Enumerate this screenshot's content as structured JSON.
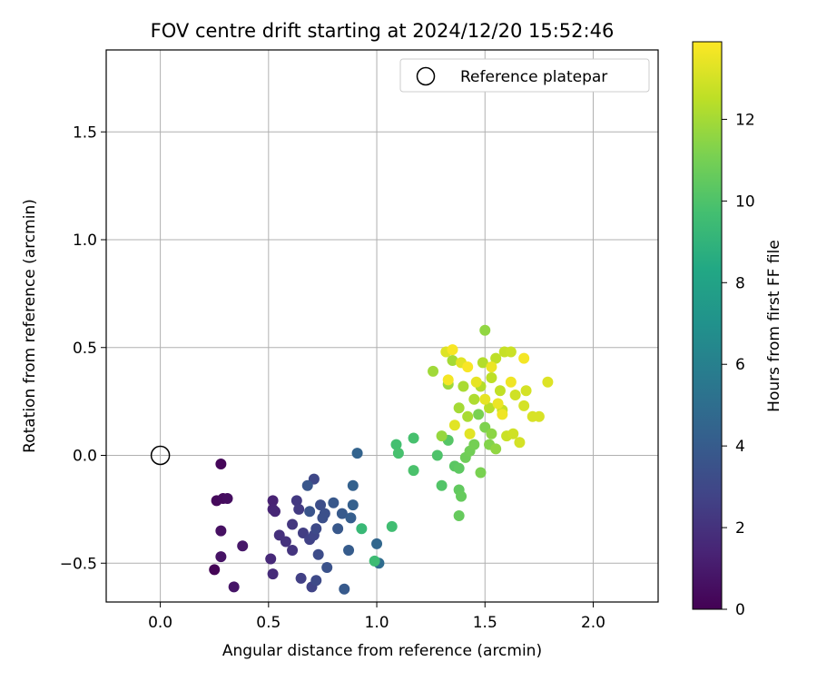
{
  "chart_data": {
    "type": "scatter",
    "title": "FOV centre drift starting at 2024/12/20 15:52:46",
    "xlabel": "Angular distance from reference (arcmin)",
    "ylabel": "Rotation from reference (arcmin)",
    "xlim": [
      -0.25,
      2.3
    ],
    "ylim": [
      -0.68,
      1.88
    ],
    "xticks": [
      "0.0",
      "0.5",
      "1.0",
      "1.5",
      "2.0"
    ],
    "xtick_values": [
      0,
      0.5,
      1.0,
      1.5,
      2.0
    ],
    "yticks": [
      "−0.5",
      "0.0",
      "0.5",
      "1.0",
      "1.5"
    ],
    "ytick_values": [
      -0.5,
      0,
      0.5,
      1.0,
      1.5
    ],
    "grid": true,
    "legend": {
      "placement": "top-right",
      "label": "Reference platepar"
    },
    "reference_point": {
      "x": 0.0,
      "y": 0.0
    },
    "colorbar": {
      "label": "Hours from first FF file",
      "range": [
        0,
        13.9
      ],
      "ticks": [
        "0",
        "2",
        "4",
        "6",
        "8",
        "10",
        "12"
      ],
      "tick_values": [
        0,
        2,
        4,
        6,
        8,
        10,
        12
      ],
      "colormap": "viridis"
    },
    "points": [
      [
        0.25,
        -0.53,
        0.1
      ],
      [
        0.28,
        -0.04,
        0.2
      ],
      [
        0.26,
        -0.21,
        0.3
      ],
      [
        0.29,
        -0.2,
        0.4
      ],
      [
        0.31,
        -0.2,
        0.5
      ],
      [
        0.28,
        -0.35,
        0.6
      ],
      [
        0.28,
        -0.47,
        0.7
      ],
      [
        0.34,
        -0.61,
        0.8
      ],
      [
        0.38,
        -0.42,
        0.9
      ],
      [
        0.52,
        -0.21,
        1.3
      ],
      [
        0.52,
        -0.25,
        1.4
      ],
      [
        0.53,
        -0.26,
        1.5
      ],
      [
        0.51,
        -0.48,
        1.6
      ],
      [
        0.52,
        -0.55,
        1.7
      ],
      [
        0.55,
        -0.37,
        1.9
      ],
      [
        0.58,
        -0.4,
        2.0
      ],
      [
        0.61,
        -0.44,
        2.1
      ],
      [
        0.61,
        -0.32,
        2.2
      ],
      [
        0.63,
        -0.21,
        2.3
      ],
      [
        0.64,
        -0.25,
        2.4
      ],
      [
        0.66,
        -0.36,
        2.5
      ],
      [
        0.65,
        -0.57,
        2.6
      ],
      [
        0.69,
        -0.39,
        2.7
      ],
      [
        0.7,
        -0.61,
        2.8
      ],
      [
        0.71,
        -0.37,
        2.9
      ],
      [
        0.71,
        -0.11,
        3.0
      ],
      [
        0.72,
        -0.34,
        3.1
      ],
      [
        0.72,
        -0.58,
        3.1
      ],
      [
        0.73,
        -0.46,
        3.2
      ],
      [
        0.74,
        -0.23,
        3.3
      ],
      [
        0.75,
        -0.29,
        3.4
      ],
      [
        0.76,
        -0.27,
        3.4
      ],
      [
        0.77,
        -0.52,
        3.5
      ],
      [
        0.69,
        -0.26,
        3.6
      ],
      [
        0.68,
        -0.14,
        3.7
      ],
      [
        0.8,
        -0.22,
        3.8
      ],
      [
        0.82,
        -0.34,
        3.8
      ],
      [
        0.84,
        -0.27,
        3.9
      ],
      [
        0.85,
        -0.62,
        3.9
      ],
      [
        0.87,
        -0.44,
        4.0
      ],
      [
        0.88,
        -0.29,
        4.1
      ],
      [
        0.89,
        -0.23,
        4.2
      ],
      [
        0.89,
        -0.14,
        4.3
      ],
      [
        0.91,
        0.01,
        4.4
      ],
      [
        1.0,
        -0.41,
        4.6
      ],
      [
        1.01,
        -0.5,
        4.9
      ],
      [
        0.93,
        -0.34,
        9.3
      ],
      [
        0.99,
        -0.49,
        9.5
      ],
      [
        1.07,
        -0.33,
        9.6
      ],
      [
        1.09,
        0.05,
        9.7
      ],
      [
        1.1,
        0.01,
        9.8
      ],
      [
        1.17,
        0.08,
        9.8
      ],
      [
        1.17,
        -0.07,
        9.9
      ],
      [
        1.28,
        0.0,
        10.0
      ],
      [
        1.3,
        -0.14,
        10.1
      ],
      [
        1.33,
        0.07,
        10.2
      ],
      [
        1.36,
        -0.05,
        10.3
      ],
      [
        1.38,
        -0.06,
        10.4
      ],
      [
        1.38,
        -0.16,
        10.5
      ],
      [
        1.39,
        -0.19,
        10.6
      ],
      [
        1.38,
        -0.28,
        10.6
      ],
      [
        1.41,
        -0.01,
        10.8
      ],
      [
        1.43,
        0.02,
        10.9
      ],
      [
        1.45,
        0.05,
        11.0
      ],
      [
        1.47,
        0.19,
        11.1
      ],
      [
        1.48,
        -0.08,
        11.1
      ],
      [
        1.5,
        0.13,
        11.2
      ],
      [
        1.52,
        0.05,
        11.3
      ],
      [
        1.53,
        0.1,
        11.5
      ],
      [
        1.55,
        0.03,
        11.6
      ],
      [
        1.5,
        0.58,
        11.6
      ],
      [
        1.3,
        0.09,
        11.7
      ],
      [
        1.33,
        0.33,
        11.8
      ],
      [
        1.26,
        0.39,
        11.9
      ],
      [
        1.35,
        0.44,
        12.0
      ],
      [
        1.38,
        0.22,
        12.0
      ],
      [
        1.4,
        0.32,
        12.1
      ],
      [
        1.42,
        0.18,
        12.1
      ],
      [
        1.45,
        0.26,
        12.2
      ],
      [
        1.48,
        0.32,
        12.3
      ],
      [
        1.49,
        0.43,
        12.3
      ],
      [
        1.52,
        0.22,
        12.4
      ],
      [
        1.53,
        0.36,
        12.5
      ],
      [
        1.55,
        0.45,
        12.5
      ],
      [
        1.57,
        0.3,
        12.6
      ],
      [
        1.58,
        0.21,
        12.7
      ],
      [
        1.59,
        0.48,
        12.7
      ],
      [
        1.6,
        0.09,
        12.8
      ],
      [
        1.62,
        0.48,
        12.8
      ],
      [
        1.63,
        0.1,
        12.9
      ],
      [
        1.64,
        0.28,
        12.9
      ],
      [
        1.66,
        0.06,
        13.0
      ],
      [
        1.68,
        0.23,
        13.0
      ],
      [
        1.69,
        0.3,
        13.0
      ],
      [
        1.72,
        0.18,
        13.1
      ],
      [
        1.75,
        0.18,
        13.1
      ],
      [
        1.79,
        0.34,
        13.2
      ],
      [
        1.32,
        0.48,
        13.2
      ],
      [
        1.36,
        0.14,
        13.3
      ],
      [
        1.39,
        0.43,
        13.3
      ],
      [
        1.43,
        0.1,
        13.3
      ],
      [
        1.46,
        0.34,
        13.4
      ],
      [
        1.5,
        0.26,
        13.4
      ],
      [
        1.53,
        0.41,
        13.5
      ],
      [
        1.56,
        0.24,
        13.5
      ],
      [
        1.58,
        0.19,
        13.6
      ],
      [
        1.62,
        0.34,
        13.6
      ],
      [
        1.68,
        0.45,
        13.7
      ],
      [
        1.33,
        0.35,
        13.7
      ],
      [
        1.35,
        0.49,
        13.8
      ],
      [
        1.42,
        0.41,
        13.8
      ]
    ]
  }
}
